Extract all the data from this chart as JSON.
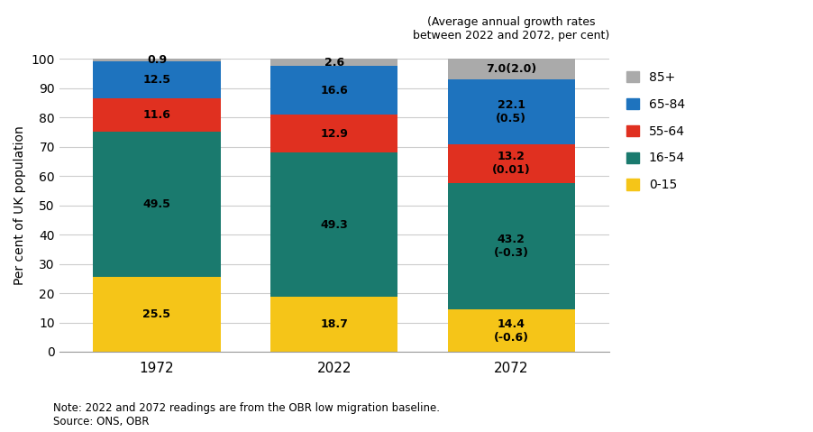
{
  "years": [
    "1972",
    "2022",
    "2072"
  ],
  "segments": [
    {
      "label": "0-15",
      "color": "#F5C518",
      "values": [
        25.5,
        18.7,
        14.4
      ],
      "annotations_1972": "25.5",
      "annotations_2022": "18.7",
      "annotations_2072": "14.4\n(-0.6)"
    },
    {
      "label": "16-54",
      "color": "#1A7A6E",
      "values": [
        49.5,
        49.3,
        43.2
      ],
      "annotations_1972": "49.5",
      "annotations_2022": "49.3",
      "annotations_2072": "43.2\n(-0.3)"
    },
    {
      "label": "55-64",
      "color": "#E03020",
      "values": [
        11.6,
        12.9,
        13.2
      ],
      "annotations_1972": "11.6",
      "annotations_2022": "12.9",
      "annotations_2072": "13.2\n(0.01)"
    },
    {
      "label": "65-84",
      "color": "#1E73BE",
      "values": [
        12.5,
        16.6,
        22.1
      ],
      "annotations_1972": "12.5",
      "annotations_2022": "16.6",
      "annotations_2072": "22.1\n(0.5)"
    },
    {
      "label": "85+",
      "color": "#AAAAAA",
      "values": [
        0.9,
        2.6,
        7.0
      ],
      "annotations_1972": "0.9",
      "annotations_2022": "2.6",
      "annotations_2072": "7.0(2.0)"
    }
  ],
  "ylabel": "Per cent of UK population",
  "ylim": [
    0,
    100
  ],
  "yticks": [
    0,
    10,
    20,
    30,
    40,
    50,
    60,
    70,
    80,
    90,
    100
  ],
  "annotation_title": "(Average annual growth rates\nbetween 2022 and 2072, per cent)",
  "note": "Note: 2022 and 2072 readings are from the OBR low migration baseline.\nSource: ONS, OBR",
  "bg_color": "#FFFFFF",
  "grid_color": "#CCCCCC",
  "legend_labels": [
    "85+",
    "65-84",
    "55-64",
    "16-54",
    "0-15"
  ],
  "legend_colors": [
    "#AAAAAA",
    "#1E73BE",
    "#E03020",
    "#1A7A6E",
    "#F5C518"
  ]
}
